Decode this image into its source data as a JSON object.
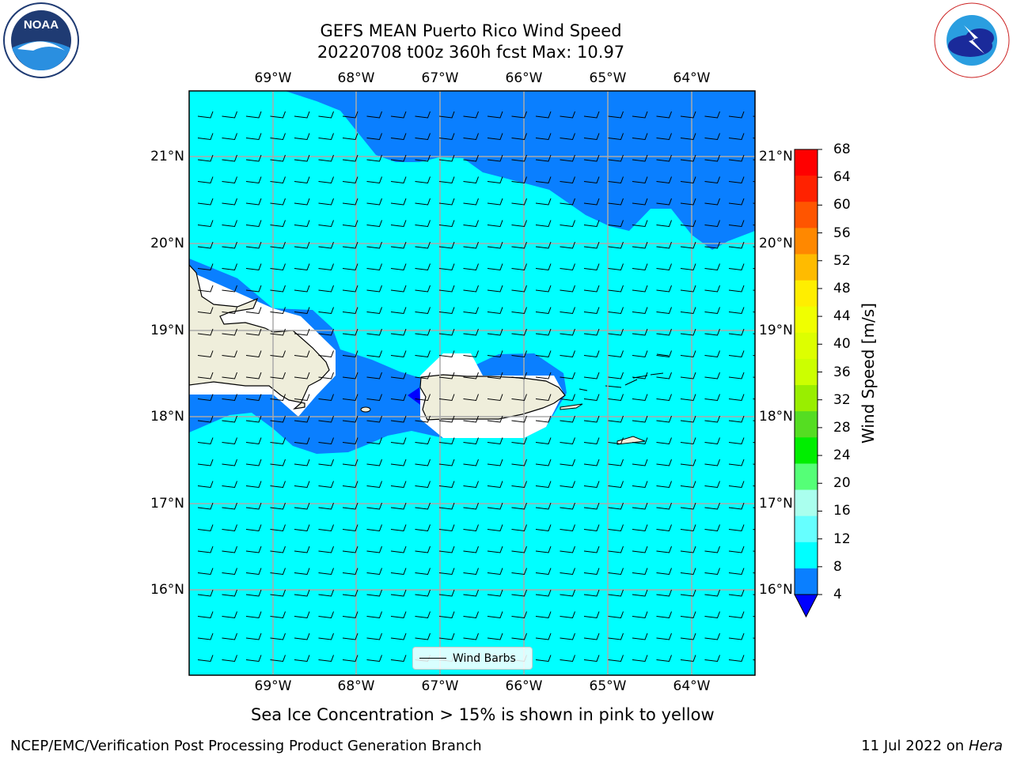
{
  "header": {
    "title_line1": "GEFS MEAN Puerto Rico Wind Speed",
    "title_line2": "20220708 t00z 360h fcst   Max: 10.97"
  },
  "logos": {
    "left": "noaa-logo",
    "right": "nws-logo"
  },
  "map": {
    "lon_labels": [
      "69°W",
      "68°W",
      "67°W",
      "66°W",
      "65°W",
      "64°W"
    ],
    "lat_labels": [
      "21°N",
      "20°N",
      "19°N",
      "18°N",
      "17°N",
      "16°N"
    ],
    "lon_range": [
      -70.0,
      -63.25
    ],
    "lat_range": [
      15.0,
      21.75
    ],
    "colors": {
      "land": "#efeedb",
      "light_wind": "#00ffff",
      "moderate_wind": "#0a7fff",
      "calm": "#0000ff"
    }
  },
  "colorbar": {
    "label": "Wind Speed [m/s]",
    "ticks": [
      "68",
      "64",
      "60",
      "56",
      "52",
      "48",
      "44",
      "40",
      "36",
      "32",
      "28",
      "24",
      "20",
      "16",
      "12",
      "8",
      "4"
    ],
    "colors": [
      "#ff0000",
      "#ff2200",
      "#ff5500",
      "#ff8800",
      "#ffbb00",
      "#ffee00",
      "#f0ff00",
      "#ddff00",
      "#ccff00",
      "#99ee00",
      "#55dd22",
      "#00ee00",
      "#55ff77",
      "#aaffee",
      "#66ffff",
      "#00ffff",
      "#0a7fff"
    ],
    "under_color": "#0000ff"
  },
  "legend": {
    "label": "Wind Barbs"
  },
  "note": "Sea Ice Concentration > 15% is shown in pink to yellow",
  "footer": {
    "left": "NCEP/EMC/Verification Post Processing Product Generation Branch",
    "right_prefix": "11 Jul 2022 on ",
    "right_host": "Hera"
  }
}
